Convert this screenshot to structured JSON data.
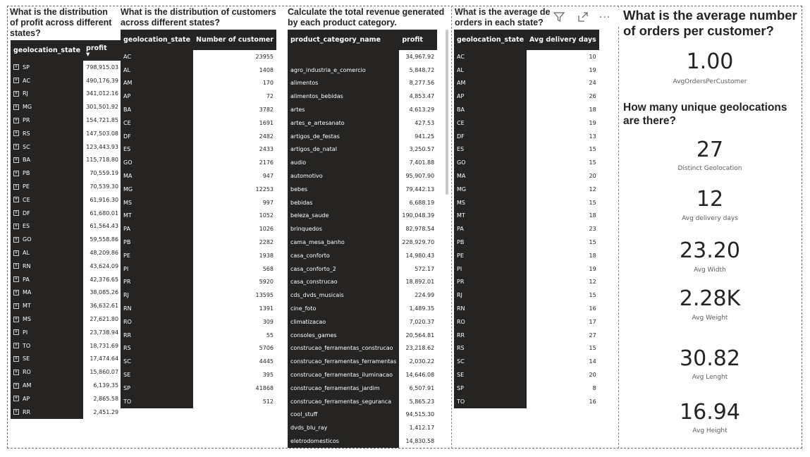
{
  "profit_by_state": {
    "title": "What is the distribution of profit across different states?",
    "columns": [
      "geolocation_state",
      "profit"
    ],
    "rows": [
      [
        "SP",
        "798,915.03"
      ],
      [
        "AC",
        "490,176.39"
      ],
      [
        "RJ",
        "341,012.16"
      ],
      [
        "MG",
        "301,501.92"
      ],
      [
        "PR",
        "154,721.85"
      ],
      [
        "RS",
        "147,503.08"
      ],
      [
        "SC",
        "123,443.93"
      ],
      [
        "BA",
        "115,718.80"
      ],
      [
        "PB",
        "70,559.19"
      ],
      [
        "PE",
        "70,539.30"
      ],
      [
        "CE",
        "61,916.30"
      ],
      [
        "DF",
        "61,680.01"
      ],
      [
        "ES",
        "61,564.43"
      ],
      [
        "GO",
        "59,558.86"
      ],
      [
        "AL",
        "48,209.86"
      ],
      [
        "RN",
        "43,624.09"
      ],
      [
        "PA",
        "42,376.65"
      ],
      [
        "MA",
        "38,085.26"
      ],
      [
        "MT",
        "36,632.61"
      ],
      [
        "MS",
        "27,621.80"
      ],
      [
        "PI",
        "23,738.94"
      ],
      [
        "TO",
        "18,731.69"
      ],
      [
        "SE",
        "17,474.64"
      ],
      [
        "RO",
        "15,860.07"
      ],
      [
        "AM",
        "6,139.35"
      ],
      [
        "AP",
        "2,865.58"
      ],
      [
        "RR",
        "2,451.29"
      ]
    ],
    "expand_icon": "plus-box-icon",
    "sort_icon": "sort-descending-icon"
  },
  "customers_by_state": {
    "title": "What is the distribution of customers across different states?",
    "columns": [
      "geolocation_state",
      "Number of customer"
    ],
    "rows": [
      [
        "AC",
        "23955"
      ],
      [
        "AL",
        "1408"
      ],
      [
        "AM",
        "170"
      ],
      [
        "AP",
        "72"
      ],
      [
        "BA",
        "3782"
      ],
      [
        "CE",
        "1691"
      ],
      [
        "DF",
        "2482"
      ],
      [
        "ES",
        "2433"
      ],
      [
        "GO",
        "2176"
      ],
      [
        "MA",
        "947"
      ],
      [
        "MG",
        "12253"
      ],
      [
        "MS",
        "997"
      ],
      [
        "MT",
        "1052"
      ],
      [
        "PA",
        "1026"
      ],
      [
        "PB",
        "2282"
      ],
      [
        "PE",
        "1938"
      ],
      [
        "PI",
        "568"
      ],
      [
        "PR",
        "5920"
      ],
      [
        "RJ",
        "13595"
      ],
      [
        "RN",
        "1391"
      ],
      [
        "RO",
        "309"
      ],
      [
        "RR",
        "55"
      ],
      [
        "RS",
        "5706"
      ],
      [
        "SC",
        "4445"
      ],
      [
        "SE",
        "395"
      ],
      [
        "SP",
        "41868"
      ],
      [
        "TO",
        "512"
      ]
    ]
  },
  "revenue_by_category": {
    "title": "Calculate the total revenue generated by each product category.",
    "columns": [
      "product_category_name",
      "profit"
    ],
    "rows": [
      [
        "",
        "34,967.92"
      ],
      [
        "agro_industria_e_comercio",
        "5,848.72"
      ],
      [
        "alimentos",
        "8,277.56"
      ],
      [
        "alimentos_bebidas",
        "4,853.47"
      ],
      [
        "artes",
        "4,613.29"
      ],
      [
        "artes_e_artesanato",
        "427.53"
      ],
      [
        "artigos_de_festas",
        "941.25"
      ],
      [
        "artigos_de_natal",
        "3,250.57"
      ],
      [
        "audio",
        "7,401.88"
      ],
      [
        "automotivo",
        "95,907.90"
      ],
      [
        "bebes",
        "79,442.13"
      ],
      [
        "bebidas",
        "6,688.19"
      ],
      [
        "beleza_saude",
        "190,048.39"
      ],
      [
        "brinquedos",
        "82,978.54"
      ],
      [
        "cama_mesa_banho",
        "228,929.70"
      ],
      [
        "casa_conforto",
        "14,980.43"
      ],
      [
        "casa_conforto_2",
        "572.17"
      ],
      [
        "casa_construcao",
        "18,892.01"
      ],
      [
        "cds_dvds_musicais",
        "224.99"
      ],
      [
        "cine_foto",
        "1,489.35"
      ],
      [
        "climatizacao",
        "7,020.37"
      ],
      [
        "consoles_games",
        "20,564.81"
      ],
      [
        "construcao_ferramentas_construcao",
        "23,218.62"
      ],
      [
        "construcao_ferramentas_ferramentas",
        "2,030.22"
      ],
      [
        "construcao_ferramentas_iluminacao",
        "14,646.08"
      ],
      [
        "construcao_ferramentas_jardim",
        "6,507.91"
      ],
      [
        "construcao_ferramentas_seguranca",
        "5,865.23"
      ],
      [
        "cool_stuff",
        "94,515.30"
      ],
      [
        "dvds_blu_ray",
        "1,412.17"
      ],
      [
        "eletrodomesticos",
        "14,830.58"
      ]
    ]
  },
  "delivery_by_state": {
    "title_visible": "What is the average de",
    "title_line2": "orders in each state?",
    "columns": [
      "geolocation_state",
      "Avg delivery days"
    ],
    "rows": [
      [
        "AC",
        "10"
      ],
      [
        "AL",
        "19"
      ],
      [
        "AM",
        "24"
      ],
      [
        "AP",
        "26"
      ],
      [
        "BA",
        "18"
      ],
      [
        "CE",
        "19"
      ],
      [
        "DF",
        "13"
      ],
      [
        "ES",
        "15"
      ],
      [
        "GO",
        "15"
      ],
      [
        "MA",
        "20"
      ],
      [
        "MG",
        "12"
      ],
      [
        "MS",
        "15"
      ],
      [
        "MT",
        "18"
      ],
      [
        "PA",
        "23"
      ],
      [
        "PB",
        "15"
      ],
      [
        "PE",
        "18"
      ],
      [
        "PI",
        "19"
      ],
      [
        "PR",
        "12"
      ],
      [
        "RJ",
        "15"
      ],
      [
        "RN",
        "16"
      ],
      [
        "RO",
        "17"
      ],
      [
        "RR",
        "27"
      ],
      [
        "RS",
        "15"
      ],
      [
        "SC",
        "14"
      ],
      [
        "SE",
        "20"
      ],
      [
        "SP",
        "8"
      ],
      [
        "TO",
        "16"
      ]
    ],
    "toolbar": {
      "filter_icon": "filter-icon",
      "focus_icon": "focus-mode-icon",
      "more_icon": "more-options-icon",
      "more_glyph": "···"
    }
  },
  "cards": {
    "orders_title": "What is the average number of orders per customer?",
    "orders_value": "1.00",
    "orders_label": "AvgOrdersPerCustomer",
    "geo_title": "How many unique geolocations are there?",
    "geo_value": "27",
    "geo_label": "Distinct Geolocation",
    "delivery_value": "12",
    "delivery_label": "Avg delivery days",
    "width_value": "23.20",
    "width_label": "Avg Width",
    "weight_value": "2.28K",
    "weight_label": "Avg Weight",
    "length_value": "30.82",
    "length_label": "Avg Lenght",
    "height_value": "16.94",
    "height_label": "Avg Height"
  }
}
